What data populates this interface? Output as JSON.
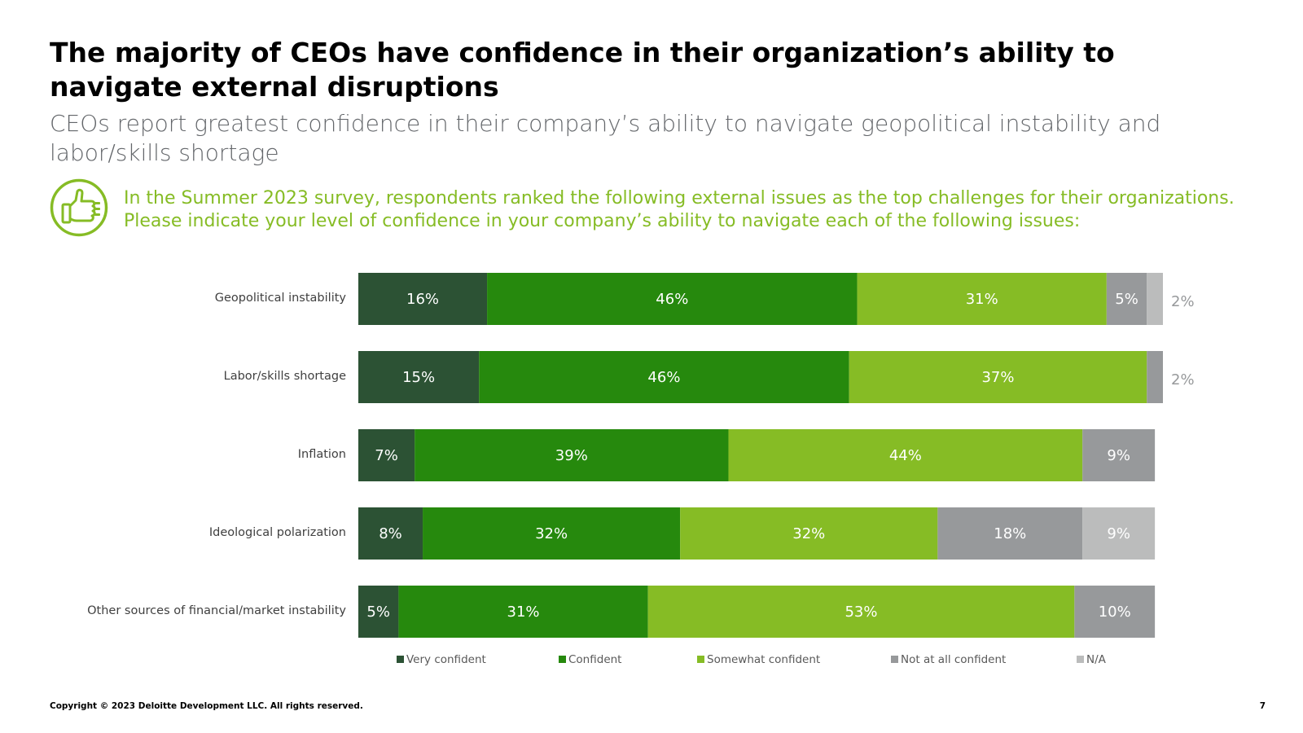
{
  "slide": {
    "title": "The majority of CEOs have confidence in their organization’s ability to navigate external disruptions",
    "subtitle": "CEOs report greatest confidence in their company’s ability to navigate geopolitical instability and labor/skills shortage",
    "question_line1": "In the Summer 2023 survey, respondents ranked the following external issues as the top challenges for their organizations.",
    "question_line2": "Please indicate your level of confidence in your company’s ability to navigate each of the following issues:",
    "icon": "thumbs-up-icon",
    "accent_color": "#86bc25",
    "copyright": "Copyright © 2023 Deloitte Development LLC. All rights reserved.",
    "page_number": "7"
  },
  "chart_data": {
    "type": "bar",
    "orientation": "horizontal",
    "stacked": true,
    "percent_scale": [
      0,
      100
    ],
    "categories": [
      "Geopolitical instability",
      "Labor/skills shortage",
      "Inflation",
      "Ideological polarization",
      "Other sources of financial/market instability"
    ],
    "series": [
      {
        "name": "Very confident",
        "color": "#2c5234",
        "values": [
          16,
          15,
          7,
          8,
          5
        ]
      },
      {
        "name": "Confident",
        "color": "#26890d",
        "values": [
          46,
          46,
          39,
          32,
          31
        ]
      },
      {
        "name": "Somewhat confident",
        "color": "#86bc25",
        "values": [
          31,
          37,
          44,
          32,
          53
        ]
      },
      {
        "name": "Not at all confident",
        "color": "#97999b",
        "values": [
          5,
          2,
          9,
          18,
          10
        ]
      },
      {
        "name": "N/A",
        "color": "#bbbcbc",
        "values": [
          2,
          0,
          0,
          9,
          0
        ]
      }
    ],
    "legend_position": "bottom",
    "data_label_color": "#ffffff",
    "outside_label_color": "#97999b",
    "grid": false
  }
}
